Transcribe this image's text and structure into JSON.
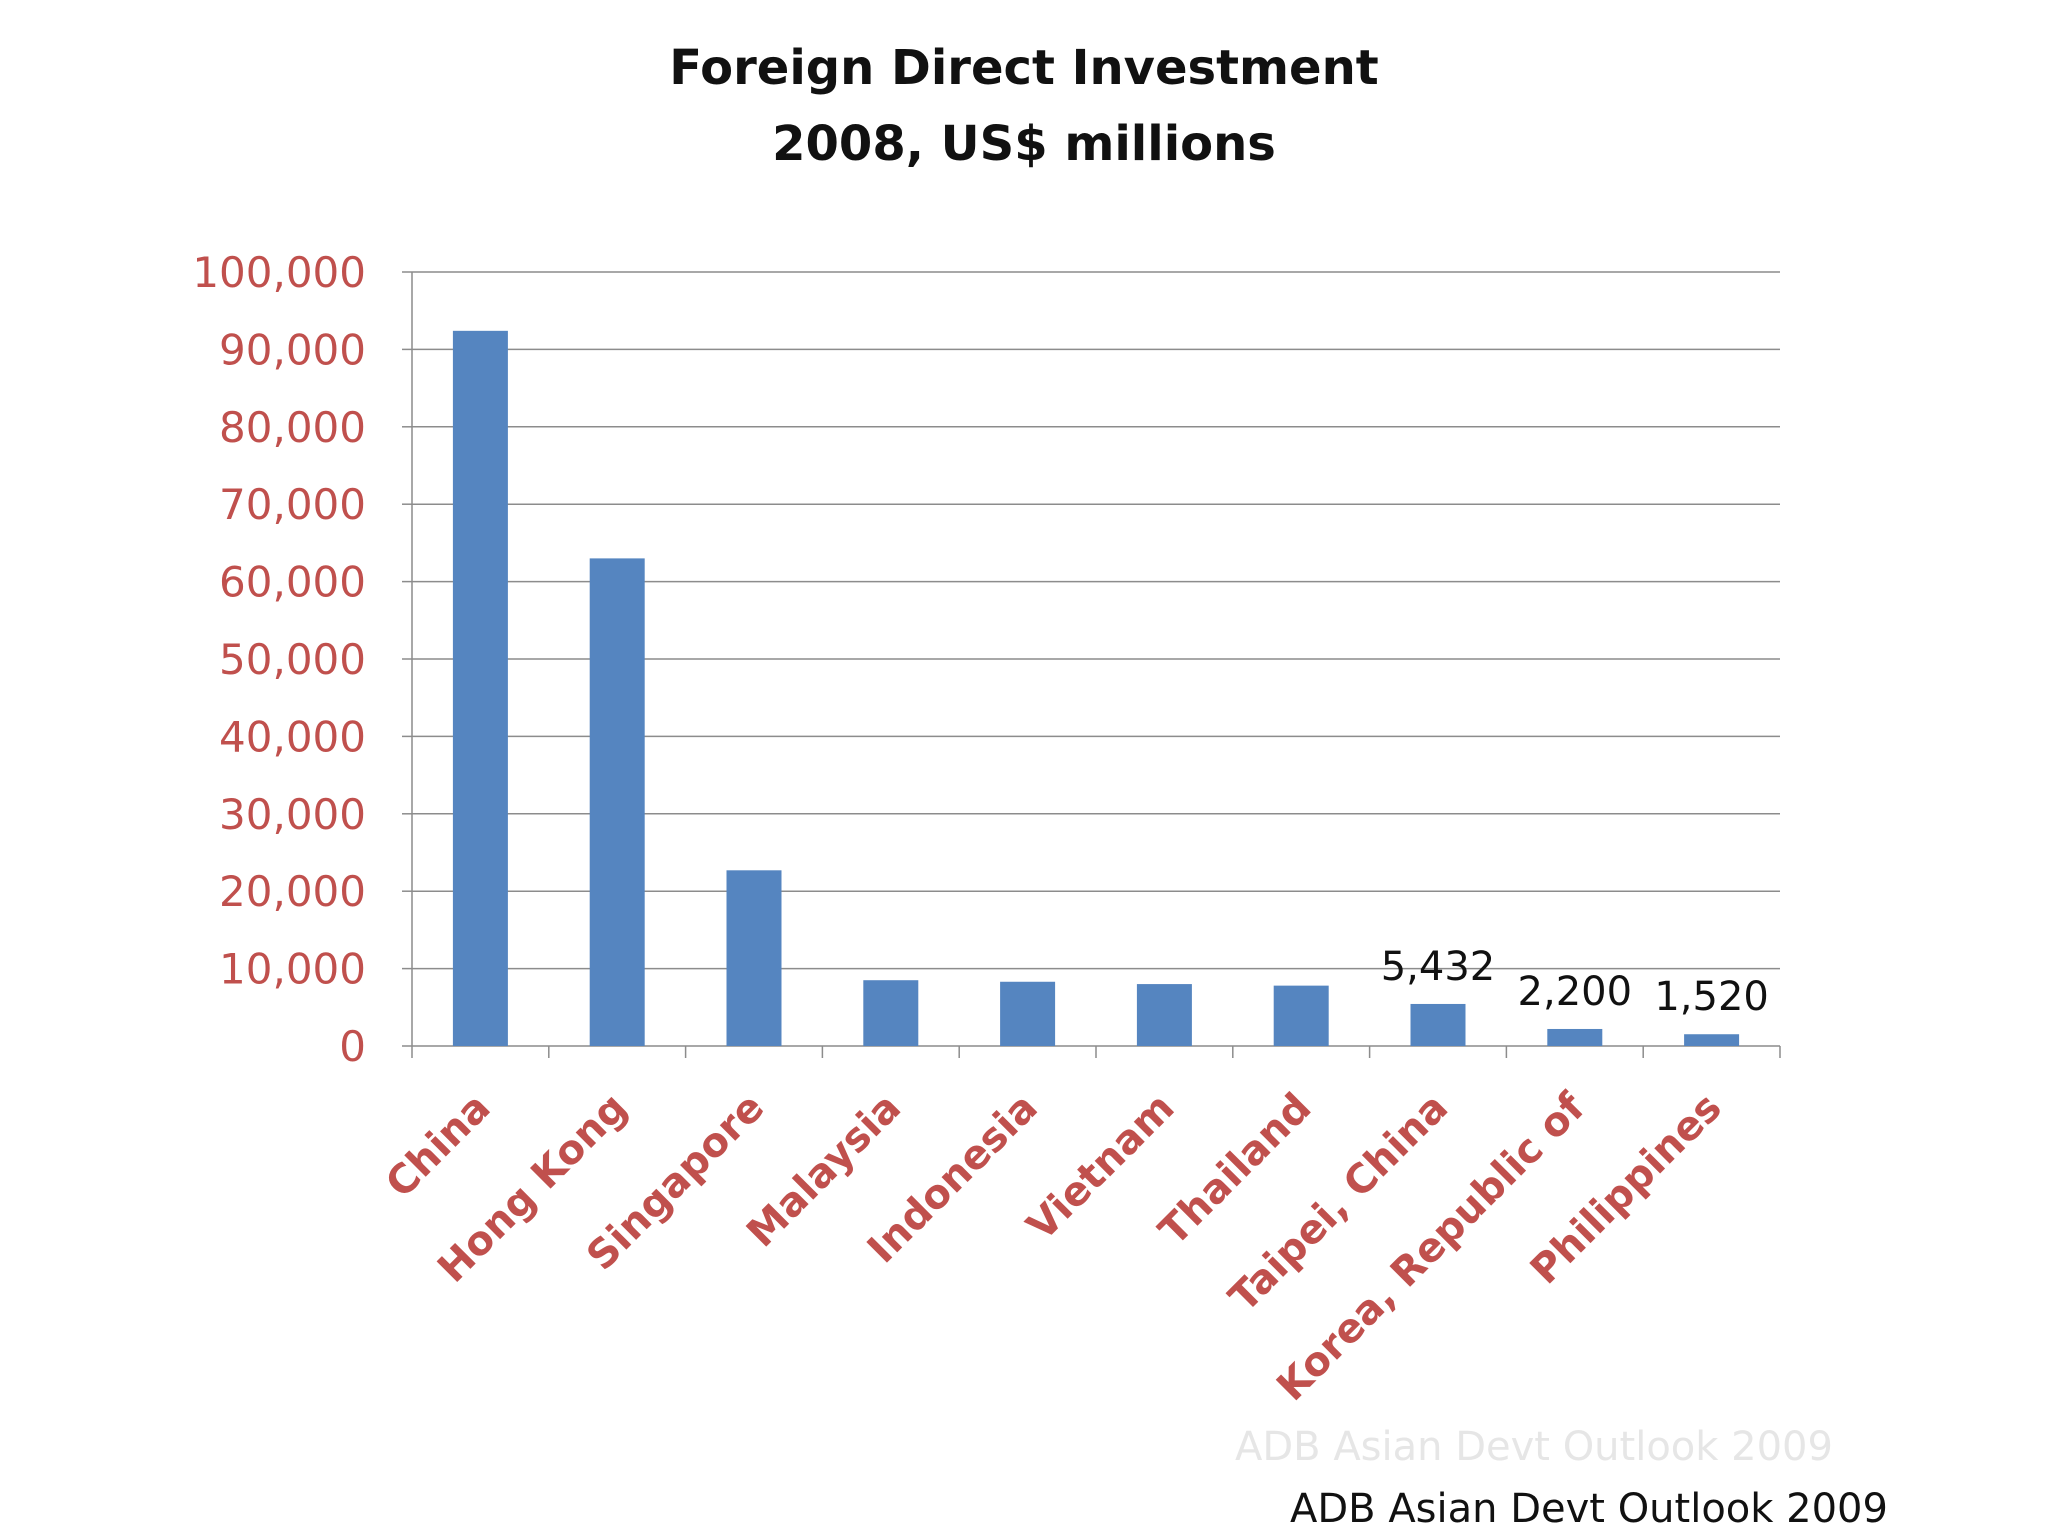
{
  "title_line1": "Foreign Direct Investment",
  "title_line2": "2008, US$ millions",
  "watermark_text": "ADB Asian Devt Outlook 2009",
  "source_text": "ADB Asian Devt Outlook 2009",
  "colors": {
    "bar": "#5585c0",
    "tick_label": "#c0504d",
    "grid": "#8c8c8c",
    "title": "#111111",
    "data_label": "#111111"
  },
  "chart_data": {
    "type": "bar",
    "title": "Foreign Direct Investment 2008, US$ millions",
    "categories": [
      "China",
      "Hong Kong",
      "Singapore",
      "Malaysia",
      "Indonesia",
      "Vietnam",
      "Thailand",
      "Taipei, China",
      "Korea, Republic of",
      "Philippines"
    ],
    "values": [
      92400,
      63000,
      22700,
      8500,
      8300,
      8000,
      7800,
      5432,
      2200,
      1520
    ],
    "data_labels": [
      null,
      null,
      null,
      null,
      null,
      null,
      null,
      "5,432",
      "2,200",
      "1,520"
    ],
    "ylim": [
      0,
      100000
    ],
    "yticks": [
      0,
      10000,
      20000,
      30000,
      40000,
      50000,
      60000,
      70000,
      80000,
      90000,
      100000
    ],
    "ytick_labels": [
      "0",
      "10,000",
      "20,000",
      "30,000",
      "40,000",
      "50,000",
      "60,000",
      "70,000",
      "80,000",
      "90,000",
      "100,000"
    ],
    "xlabel": "",
    "ylabel": "",
    "grid": true,
    "legend": "none"
  }
}
